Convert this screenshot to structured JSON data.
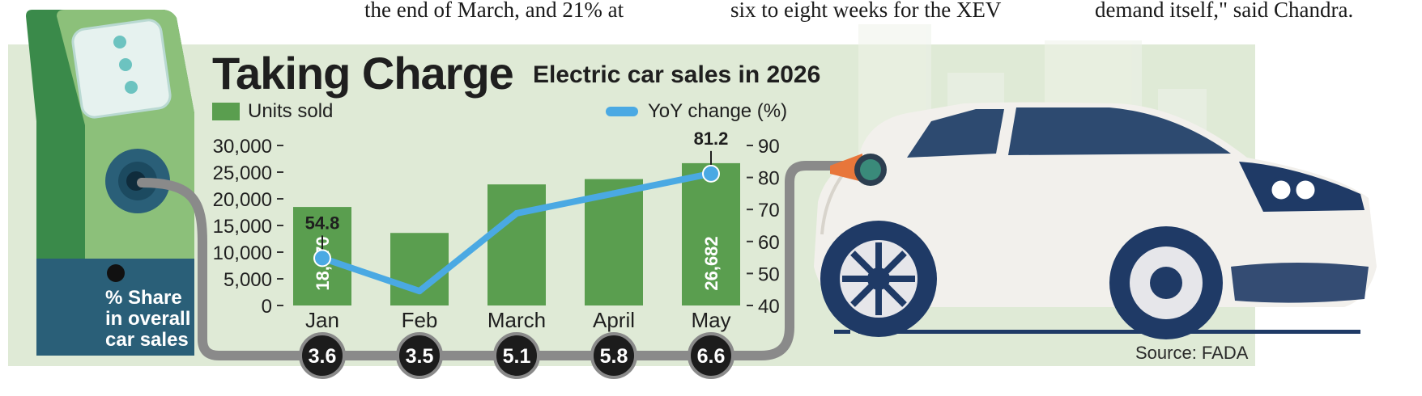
{
  "article_snippets": [
    "the end of  March, and 21% at",
    "six to eight weeks for the XEV",
    "demand itself,\" said Chandra."
  ],
  "colors": {
    "bar": "#5a9e4f",
    "line": "#4aa9e3",
    "bg_panel": "#dfead6",
    "pump": "#3a8a4a",
    "pump_light": "#8cc07a",
    "pump_dark": "#2a5f78",
    "hose": "#8a8a8a",
    "badge": "#1c1c1c",
    "car_body": "#f2f0ec",
    "car_dark": "#1f3a66"
  },
  "chart_data": {
    "type": "bar",
    "title": "Taking Charge",
    "subtitle": "Electric car sales in 2026",
    "categories": [
      "Jan",
      "Feb",
      "March",
      "April",
      "May"
    ],
    "series": [
      {
        "name": "Units sold",
        "axis": "left",
        "values": [
          18470,
          13600,
          22700,
          23700,
          26682
        ]
      },
      {
        "name": "YoY change (%)",
        "axis": "right",
        "type": "line",
        "values": [
          54.8,
          44.5,
          68.8,
          75.0,
          81.2
        ]
      }
    ],
    "bar_labels": [
      "18,470",
      "",
      "",
      "",
      "26,682"
    ],
    "line_labels": [
      "54.8",
      "",
      "",
      "",
      "81.2"
    ],
    "left_axis": {
      "ticks": [
        "0",
        "5,000",
        "10,000",
        "15,000",
        "20,000",
        "25,000",
        "30,000"
      ],
      "range": [
        0,
        30000
      ]
    },
    "right_axis": {
      "ticks": [
        "40",
        "50",
        "60",
        "70",
        "80",
        "90"
      ],
      "range": [
        40,
        90
      ]
    },
    "share": {
      "label_lines": [
        "% Share",
        "in overall",
        "car sales"
      ],
      "values": [
        "3.6",
        "3.5",
        "5.1",
        "5.8",
        "6.6"
      ]
    },
    "source": "Source: FADA",
    "legend_placement": "top"
  }
}
